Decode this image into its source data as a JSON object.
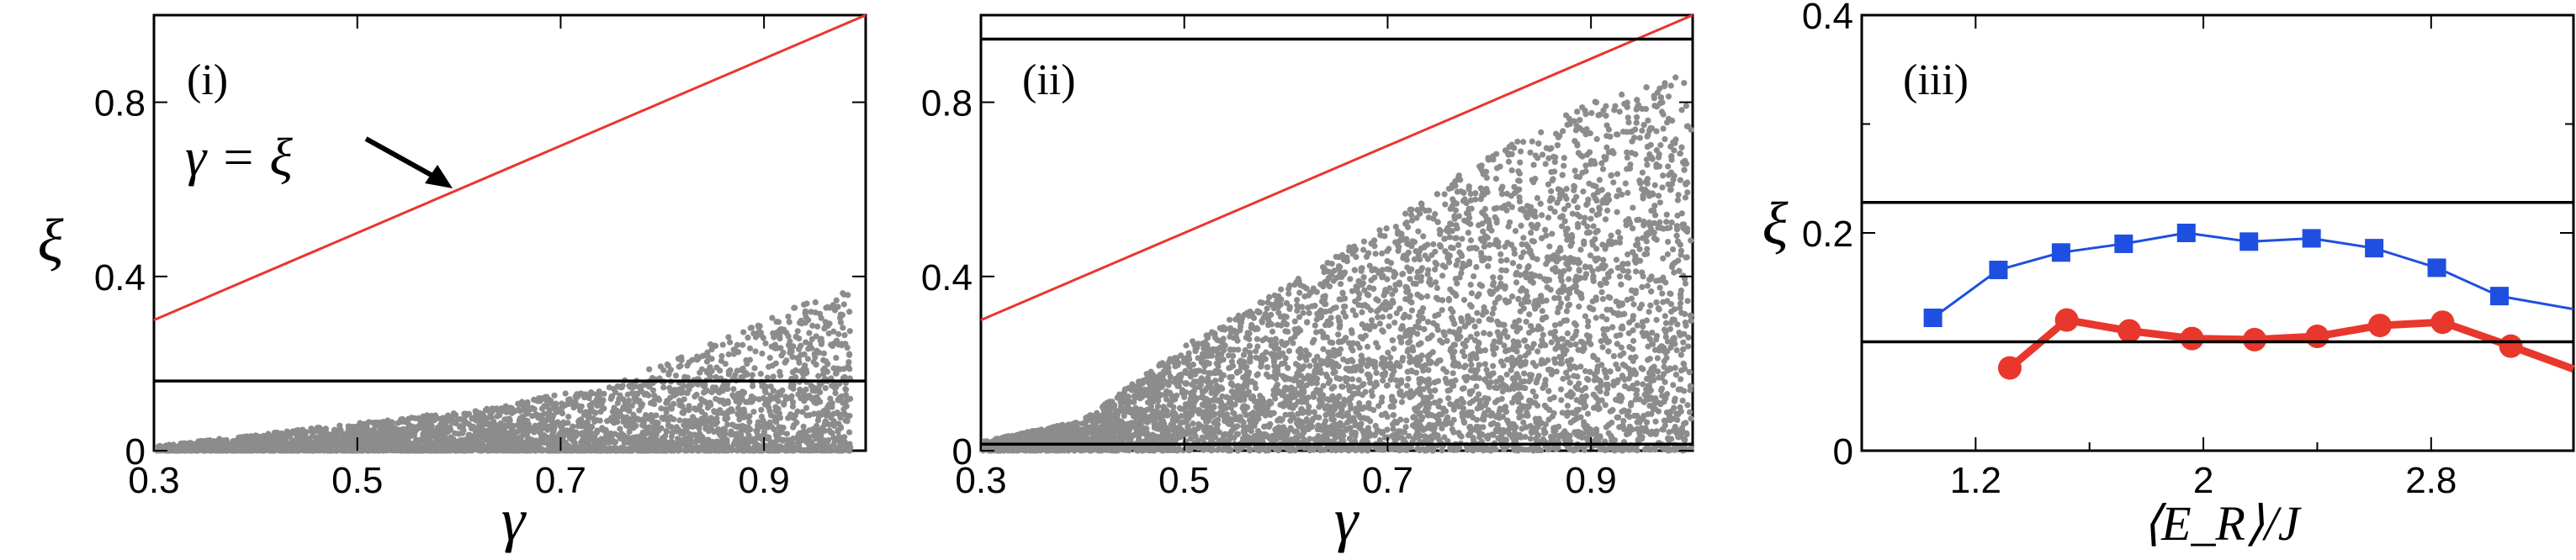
{
  "chart_data": [
    {
      "type": "scatter",
      "panel_tag": "(i)",
      "xlabel": "γ",
      "ylabel": "ξ",
      "xlim": [
        0.3,
        1.0
      ],
      "ylim": [
        0,
        1.0
      ],
      "xticks": [
        "0.3",
        "0.5",
        "0.7",
        "0.9"
      ],
      "xtick_values": [
        0.3,
        0.5,
        0.7,
        0.9
      ],
      "yticks": [
        "0",
        "0.4",
        "0.8"
      ],
      "ytick_values": [
        0,
        0.4,
        0.8
      ],
      "reference_line": {
        "label": "γ = ξ",
        "x": [
          0.3,
          1.0
        ],
        "y": [
          0.3,
          1.0
        ],
        "color": "#e8372c"
      },
      "hlines": [
        0.16
      ],
      "annotation": "γ = ξ",
      "scatter_color": "#8c8c8c",
      "scatter_envelope": {
        "x": [
          0.3,
          0.45,
          0.6,
          0.75,
          0.9,
          0.97
        ],
        "y_max": [
          0.01,
          0.05,
          0.09,
          0.15,
          0.3,
          0.37
        ]
      },
      "scatter_points_approx": 4000
    },
    {
      "type": "scatter",
      "panel_tag": "(ii)",
      "xlabel": "γ",
      "ylabel": "",
      "xlim": [
        0.3,
        1.0
      ],
      "ylim": [
        0,
        1.0
      ],
      "xticks": [
        "0.3",
        "0.5",
        "0.7",
        "0.9"
      ],
      "xtick_values": [
        0.3,
        0.5,
        0.7,
        0.9
      ],
      "yticks": [
        "0",
        "0.4",
        "0.8"
      ],
      "ytick_values": [
        0,
        0.4,
        0.8
      ],
      "reference_line": {
        "x": [
          0.3,
          1.0
        ],
        "y": [
          0.3,
          1.0
        ],
        "color": "#e8372c"
      },
      "hlines": [
        0.015,
        0.945
      ],
      "scatter_color": "#8c8c8c",
      "scatter_envelope": {
        "x": [
          0.3,
          0.4,
          0.5,
          0.6,
          0.7,
          0.8,
          0.9,
          1.0
        ],
        "y_max": [
          0.02,
          0.07,
          0.24,
          0.38,
          0.52,
          0.68,
          0.8,
          0.87
        ]
      },
      "scatter_points_approx": 6000
    },
    {
      "type": "line",
      "panel_tag": "(iii)",
      "xlabel": "⟨E_R⟩/J",
      "ylabel": "ξ",
      "xlim": [
        0.8,
        3.3
      ],
      "ylim": [
        0,
        0.4
      ],
      "xticks": [
        "1.2",
        "2",
        "2.8"
      ],
      "xtick_values": [
        1.2,
        2.0,
        2.8
      ],
      "yticks": [
        "0",
        "0.2",
        "0.4"
      ],
      "ytick_values": [
        0,
        0.2,
        0.4
      ],
      "hlines": [
        0.228,
        0.1
      ],
      "series": [
        {
          "color": "#1f4fe0",
          "marker": "square",
          "x": [
            1.05,
            1.28,
            1.5,
            1.72,
            1.94,
            2.16,
            2.38,
            2.6,
            2.82,
            3.04,
            3.3
          ],
          "values": [
            0.122,
            0.166,
            0.182,
            0.19,
            0.2,
            0.192,
            0.195,
            0.186,
            0.168,
            0.142,
            0.13
          ]
        },
        {
          "color": "#e8372c",
          "marker": "circle",
          "x": [
            1.32,
            1.52,
            1.74,
            1.96,
            2.18,
            2.4,
            2.62,
            2.84,
            3.08,
            3.3
          ],
          "values": [
            0.076,
            0.12,
            0.11,
            0.103,
            0.102,
            0.105,
            0.115,
            0.118,
            0.096,
            0.075
          ]
        }
      ]
    }
  ]
}
